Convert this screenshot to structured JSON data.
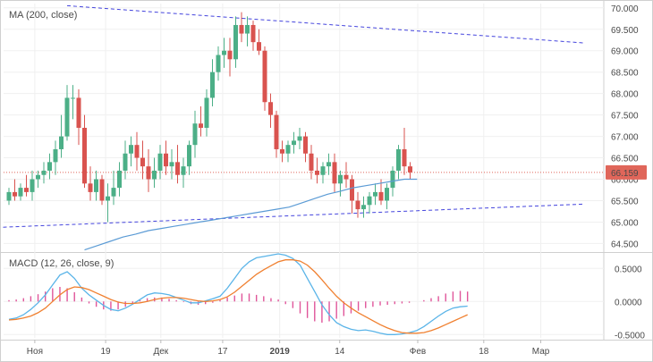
{
  "chart_data": [
    {
      "type": "candlestick",
      "title": "MA (200, close)",
      "ylim": [
        64.3,
        70.1
      ],
      "y_ticks": [
        "70.000",
        "69.500",
        "69.000",
        "68.500",
        "68.000",
        "67.500",
        "67.000",
        "66.500",
        "66.000",
        "65.500",
        "65.000",
        "64.500"
      ],
      "y_tick_values": [
        70.0,
        69.5,
        69.0,
        68.5,
        68.0,
        67.5,
        67.0,
        66.5,
        66.0,
        65.5,
        65.0,
        64.5
      ],
      "last_price_label": "66.159",
      "last_price": 66.159,
      "colors": {
        "up": "#4caf87",
        "down": "#d9534f",
        "ma": "#5b9bd5",
        "trend": "#4444dd",
        "price_line": "#e0665a",
        "price_tag": "#e0665a"
      },
      "candles": [
        [
          65.5,
          65.8,
          65.4,
          65.7
        ],
        [
          65.7,
          66.0,
          65.5,
          65.6
        ],
        [
          65.6,
          65.9,
          65.5,
          65.8
        ],
        [
          65.8,
          66.1,
          65.6,
          65.7
        ],
        [
          65.7,
          66.2,
          65.5,
          66.0
        ],
        [
          66.0,
          66.2,
          65.8,
          66.1
        ],
        [
          66.1,
          66.4,
          65.9,
          66.2
        ],
        [
          66.2,
          66.6,
          66.0,
          66.4
        ],
        [
          66.4,
          66.9,
          66.1,
          66.7
        ],
        [
          66.7,
          67.5,
          66.5,
          67.0
        ],
        [
          67.0,
          68.2,
          66.9,
          67.9
        ],
        [
          67.9,
          68.2,
          67.4,
          67.9
        ],
        [
          67.9,
          68.1,
          66.8,
          67.2
        ],
        [
          67.2,
          67.5,
          65.8,
          65.9
        ],
        [
          65.9,
          66.3,
          65.5,
          65.7
        ],
        [
          65.7,
          66.2,
          65.5,
          66.0
        ],
        [
          66.0,
          66.1,
          65.4,
          65.5
        ],
        [
          65.5,
          65.9,
          65.0,
          65.6
        ],
        [
          65.6,
          66.2,
          65.4,
          65.8
        ],
        [
          65.8,
          66.4,
          65.6,
          66.2
        ],
        [
          66.2,
          66.9,
          66.0,
          66.6
        ],
        [
          66.6,
          67.0,
          66.3,
          66.8
        ],
        [
          66.8,
          67.1,
          66.2,
          66.5
        ],
        [
          66.5,
          66.9,
          66.0,
          66.3
        ],
        [
          66.3,
          66.7,
          65.7,
          66.0
        ],
        [
          66.0,
          66.5,
          65.8,
          66.2
        ],
        [
          66.2,
          66.8,
          66.0,
          66.6
        ],
        [
          66.6,
          66.9,
          66.1,
          66.3
        ],
        [
          66.3,
          66.7,
          66.0,
          66.4
        ],
        [
          66.4,
          66.8,
          65.9,
          66.1
        ],
        [
          66.1,
          66.5,
          65.8,
          66.3
        ],
        [
          66.3,
          66.9,
          66.1,
          66.8
        ],
        [
          66.8,
          67.6,
          66.5,
          67.3
        ],
        [
          67.3,
          67.7,
          67.0,
          67.2
        ],
        [
          67.2,
          68.1,
          67.0,
          67.9
        ],
        [
          67.9,
          68.8,
          67.7,
          68.5
        ],
        [
          68.5,
          69.1,
          68.3,
          68.9
        ],
        [
          68.9,
          69.3,
          68.6,
          69.0
        ],
        [
          69.0,
          69.3,
          68.4,
          68.8
        ],
        [
          68.8,
          69.8,
          68.6,
          69.6
        ],
        [
          69.6,
          69.9,
          69.2,
          69.4
        ],
        [
          69.4,
          69.8,
          69.1,
          69.6
        ],
        [
          69.6,
          69.7,
          69.0,
          69.2
        ],
        [
          69.2,
          69.5,
          68.9,
          69.0
        ],
        [
          69.0,
          69.1,
          67.6,
          67.8
        ],
        [
          67.8,
          68.0,
          67.2,
          67.5
        ],
        [
          67.5,
          67.6,
          66.5,
          66.7
        ],
        [
          66.7,
          66.9,
          66.4,
          66.6
        ],
        [
          66.6,
          66.9,
          66.4,
          66.8
        ],
        [
          66.8,
          67.1,
          66.6,
          66.9
        ],
        [
          66.9,
          67.2,
          66.7,
          67.0
        ],
        [
          67.0,
          67.1,
          66.4,
          66.6
        ],
        [
          66.6,
          66.8,
          66.0,
          66.2
        ],
        [
          66.2,
          66.5,
          65.9,
          66.1
        ],
        [
          66.1,
          66.4,
          65.9,
          66.3
        ],
        [
          66.3,
          66.6,
          66.1,
          66.4
        ],
        [
          66.4,
          66.6,
          65.7,
          65.9
        ],
        [
          65.9,
          66.2,
          65.6,
          66.1
        ],
        [
          66.1,
          66.4,
          65.8,
          66.0
        ],
        [
          66.0,
          66.1,
          65.2,
          65.5
        ],
        [
          65.5,
          65.7,
          65.1,
          65.3
        ],
        [
          65.3,
          65.6,
          65.1,
          65.4
        ],
        [
          65.4,
          65.7,
          65.2,
          65.6
        ],
        [
          65.6,
          65.9,
          65.4,
          65.7
        ],
        [
          65.7,
          66.0,
          65.4,
          65.5
        ],
        [
          65.5,
          65.9,
          65.3,
          65.8
        ],
        [
          65.8,
          66.3,
          65.6,
          66.2
        ],
        [
          66.2,
          66.8,
          66.0,
          66.7
        ],
        [
          66.7,
          67.2,
          66.1,
          66.3
        ],
        [
          66.3,
          66.4,
          66.0,
          66.16
        ]
      ],
      "ma": [
        64.35,
        64.45,
        64.55,
        64.65,
        64.72,
        64.8,
        64.85,
        64.9,
        64.95,
        65.0,
        65.05,
        65.1,
        65.15,
        65.2,
        65.25,
        65.3,
        65.35,
        65.45,
        65.55,
        65.65,
        65.72,
        65.8,
        65.85,
        65.9,
        65.95,
        66.0,
        66.0
      ],
      "ma_start_index": 13,
      "trendlines": [
        {
          "from": [
            10,
            70.05
          ],
          "to": [
            99,
            69.18
          ]
        },
        {
          "from": [
            -1,
            64.88
          ],
          "to": [
            99,
            65.42
          ]
        }
      ]
    },
    {
      "type": "line",
      "title": "MACD (12, 26, close, 9)",
      "ylim": [
        -0.55,
        0.72
      ],
      "y_ticks": [
        "0.5000",
        "0.0000",
        "-0.5000"
      ],
      "y_tick_values": [
        0.5,
        0.0,
        -0.5
      ],
      "series": [
        {
          "name": "macd",
          "color": "#5ab4e8",
          "values": [
            -0.27,
            -0.25,
            -0.2,
            -0.12,
            -0.02,
            0.1,
            0.25,
            0.4,
            0.45,
            0.35,
            0.2,
            0.1,
            0.02,
            -0.06,
            -0.12,
            -0.14,
            -0.1,
            -0.04,
            0.03,
            0.1,
            0.13,
            0.12,
            0.1,
            0.06,
            0.02,
            -0.02,
            -0.02,
            0.01,
            0.04,
            0.08,
            0.2,
            0.35,
            0.5,
            0.6,
            0.66,
            0.68,
            0.7,
            0.72,
            0.7,
            0.65,
            0.55,
            0.35,
            0.15,
            -0.05,
            -0.2,
            -0.32,
            -0.38,
            -0.42,
            -0.44,
            -0.43,
            -0.45,
            -0.48,
            -0.5,
            -0.5,
            -0.49,
            -0.47,
            -0.44,
            -0.38,
            -0.3,
            -0.22,
            -0.15,
            -0.1,
            -0.08,
            -0.07
          ]
        },
        {
          "name": "signal",
          "color": "#f08030",
          "values": [
            -0.28,
            -0.27,
            -0.25,
            -0.22,
            -0.17,
            -0.1,
            0.0,
            0.1,
            0.18,
            0.22,
            0.21,
            0.18,
            0.13,
            0.08,
            0.03,
            -0.01,
            -0.03,
            -0.03,
            -0.02,
            0.0,
            0.03,
            0.05,
            0.06,
            0.06,
            0.05,
            0.03,
            0.01,
            0.0,
            0.01,
            0.03,
            0.07,
            0.14,
            0.23,
            0.32,
            0.41,
            0.48,
            0.54,
            0.6,
            0.63,
            0.63,
            0.61,
            0.55,
            0.45,
            0.33,
            0.2,
            0.08,
            -0.02,
            -0.1,
            -0.17,
            -0.23,
            -0.29,
            -0.35,
            -0.4,
            -0.44,
            -0.47,
            -0.48,
            -0.48,
            -0.47,
            -0.44,
            -0.4,
            -0.35,
            -0.3,
            -0.25,
            -0.2
          ]
        }
      ],
      "histogram_color": "#e0559a",
      "histogram": [
        0.02,
        0.03,
        0.05,
        0.08,
        0.11,
        0.15,
        0.2,
        0.22,
        0.2,
        0.14,
        0.06,
        -0.03,
        -0.08,
        -0.12,
        -0.14,
        -0.12,
        -0.08,
        -0.03,
        0.02,
        0.05,
        0.06,
        0.06,
        0.04,
        0.02,
        -0.01,
        -0.04,
        -0.05,
        -0.04,
        -0.02,
        0.02,
        0.06,
        0.09,
        0.12,
        0.12,
        0.1,
        0.08,
        0.05,
        0.03,
        -0.04,
        -0.1,
        -0.18,
        -0.25,
        -0.3,
        -0.32,
        -0.3,
        -0.26,
        -0.22,
        -0.18,
        -0.14,
        -0.1,
        -0.08,
        -0.06,
        -0.05,
        -0.04,
        -0.03,
        -0.02,
        0.0,
        0.02,
        0.05,
        0.08,
        0.12,
        0.15,
        0.16,
        0.15
      ]
    }
  ],
  "x_axis": {
    "labels": [
      {
        "text": "Ноя",
        "pos": 0.052,
        "bold": false
      },
      {
        "text": "19",
        "pos": 0.17,
        "bold": false
      },
      {
        "text": "Дек",
        "pos": 0.262,
        "bold": false
      },
      {
        "text": "17",
        "pos": 0.365,
        "bold": false
      },
      {
        "text": "2019",
        "pos": 0.46,
        "bold": true
      },
      {
        "text": "14",
        "pos": 0.56,
        "bold": false
      },
      {
        "text": "Фев",
        "pos": 0.69,
        "bold": false
      },
      {
        "text": "18",
        "pos": 0.8,
        "bold": false
      },
      {
        "text": "Мар",
        "pos": 0.895,
        "bold": false
      }
    ]
  }
}
